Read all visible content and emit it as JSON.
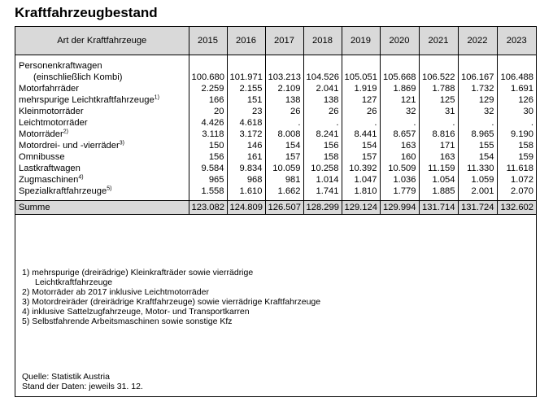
{
  "title": "Kraftfahrzeugbestand",
  "table": {
    "header_label": "Art der Kraftfahrzeuge",
    "years": [
      "2015",
      "2016",
      "2017",
      "2018",
      "2019",
      "2020",
      "2021",
      "2022",
      "2023"
    ],
    "rows": [
      {
        "label": "Personenkraftwagen",
        "label2": "(einschließlich Kombi)",
        "sup": "",
        "values": [
          "100.680",
          "101.971",
          "103.213",
          "104.526",
          "105.051",
          "105.668",
          "106.522",
          "106.167",
          "106.488"
        ]
      },
      {
        "label": "Motorfahrräder",
        "sup": "",
        "values": [
          "2.259",
          "2.155",
          "2.109",
          "2.041",
          "1.919",
          "1.869",
          "1.788",
          "1.732",
          "1.691"
        ]
      },
      {
        "label": "mehrspurige Leichtkraftfahrzeuge",
        "sup": "1)",
        "values": [
          "166",
          "151",
          "138",
          "138",
          "127",
          "121",
          "125",
          "129",
          "126"
        ]
      },
      {
        "label": "Kleinmotorräder",
        "sup": "",
        "values": [
          "20",
          "23",
          "26",
          "26",
          "26",
          "32",
          "31",
          "32",
          "30"
        ]
      },
      {
        "label": "Leichtmotorräder",
        "sup": "",
        "values": [
          "4.426",
          "4.618",
          ".",
          ".",
          ".",
          ".",
          ".",
          ".",
          "."
        ]
      },
      {
        "label": "Motorräder",
        "sup": "2)",
        "values": [
          "3.118",
          "3.172",
          "8.008",
          "8.241",
          "8.441",
          "8.657",
          "8.816",
          "8.965",
          "9.190"
        ]
      },
      {
        "label": "Motordrei- und -vierräder",
        "sup": "3)",
        "values": [
          "150",
          "146",
          "154",
          "156",
          "154",
          "163",
          "171",
          "155",
          "158"
        ]
      },
      {
        "label": "Omnibusse",
        "sup": "",
        "values": [
          "156",
          "161",
          "157",
          "158",
          "157",
          "160",
          "163",
          "154",
          "159"
        ]
      },
      {
        "label": "Lastkraftwagen",
        "sup": "",
        "values": [
          "9.584",
          "9.834",
          "10.059",
          "10.258",
          "10.392",
          "10.509",
          "11.159",
          "11.330",
          "11.618"
        ]
      },
      {
        "label": "Zugmaschinen",
        "sup": "4)",
        "values": [
          "965",
          "968",
          "981",
          "1.014",
          "1.047",
          "1.036",
          "1.054",
          "1.059",
          "1.072"
        ]
      },
      {
        "label": "Spezialkraftfahrzeuge",
        "sup": "5)",
        "values": [
          "1.558",
          "1.610",
          "1.662",
          "1.741",
          "1.810",
          "1.779",
          "1.885",
          "2.001",
          "2.070"
        ]
      }
    ],
    "sum": {
      "label": "Summe",
      "values": [
        "123.082",
        "124.809",
        "126.507",
        "128.299",
        "129.124",
        "129.994",
        "131.714",
        "131.724",
        "132.602"
      ]
    }
  },
  "notes": {
    "n1": "1) mehrspurige (dreirädrige) Kleinkrafträder sowie vierrädrige",
    "n1b": "Leichtkraftfahrzeuge",
    "n2": "2) Motorräder ab 2017 inklusive Leichtmotorräder",
    "n3": "3) Motordreiräder (dreirädrige Kraftfahrzeuge) sowie vierrädrige Kraftfahrzeuge",
    "n4": "4) inklusive Sattelzugfahrzeuge, Motor- und Transportkarren",
    "n5": "5) Selbstfahrende Arbeitsmaschinen sowie sonstige Kfz"
  },
  "source": {
    "line1": "Quelle: Statistik Austria",
    "line2": "Stand der Daten: jeweils 31. 12."
  }
}
